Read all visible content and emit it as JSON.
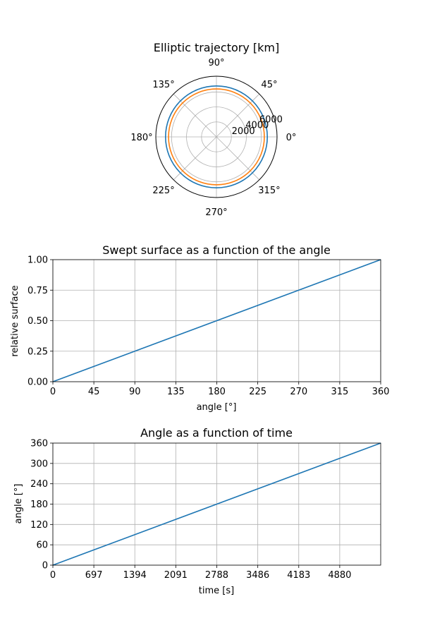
{
  "chart_data": [
    {
      "type": "line",
      "subtype": "polar",
      "title": "Elliptic trajectory [km]",
      "theta_ticks": [
        "0°",
        "45°",
        "90°",
        "135°",
        "180°",
        "225°",
        "270°",
        "315°"
      ],
      "theta_tick_values": [
        0,
        45,
        90,
        135,
        180,
        225,
        270,
        315
      ],
      "r_ticks": [
        "2000",
        "4000",
        "6000"
      ],
      "r_tick_values": [
        2000,
        4000,
        6000
      ],
      "rlim": [
        0,
        8100
      ],
      "grid": true,
      "series": [
        {
          "color": "#1f77b4",
          "r_const": 6800
        },
        {
          "color": "#ff7f0e",
          "r_const": 6400
        }
      ]
    },
    {
      "type": "line",
      "title": "Swept surface as a function of the angle",
      "xlabel": "angle [°]",
      "ylabel": "relative surface",
      "xlim": [
        0,
        360
      ],
      "ylim": [
        0,
        1
      ],
      "xticks": [
        "0",
        "45",
        "90",
        "135",
        "180",
        "225",
        "270",
        "315",
        "360"
      ],
      "xtick_values": [
        0,
        45,
        90,
        135,
        180,
        225,
        270,
        315,
        360
      ],
      "yticks": [
        "0.00",
        "0.25",
        "0.50",
        "0.75",
        "1.00"
      ],
      "ytick_values": [
        0,
        0.25,
        0.5,
        0.75,
        1
      ],
      "grid": true,
      "series": [
        {
          "color": "#1f77b4",
          "x": [
            0,
            360
          ],
          "y": [
            0,
            1
          ]
        }
      ]
    },
    {
      "type": "line",
      "title": "Angle as a function of time",
      "xlabel": "time [s]",
      "ylabel": "angle [°]",
      "xlim": [
        0,
        5577
      ],
      "ylim": [
        0,
        360
      ],
      "xticks": [
        "0",
        "697",
        "1394",
        "2091",
        "2788",
        "3486",
        "4183",
        "4880"
      ],
      "xtick_values": [
        0,
        697,
        1394,
        2091,
        2788,
        3486,
        4183,
        4880
      ],
      "yticks": [
        "0",
        "60",
        "120",
        "180",
        "240",
        "300",
        "360"
      ],
      "ytick_values": [
        0,
        60,
        120,
        180,
        240,
        300,
        360
      ],
      "grid": true,
      "series": [
        {
          "color": "#1f77b4",
          "x": [
            0,
            5577
          ],
          "y": [
            0,
            360
          ]
        }
      ]
    }
  ]
}
